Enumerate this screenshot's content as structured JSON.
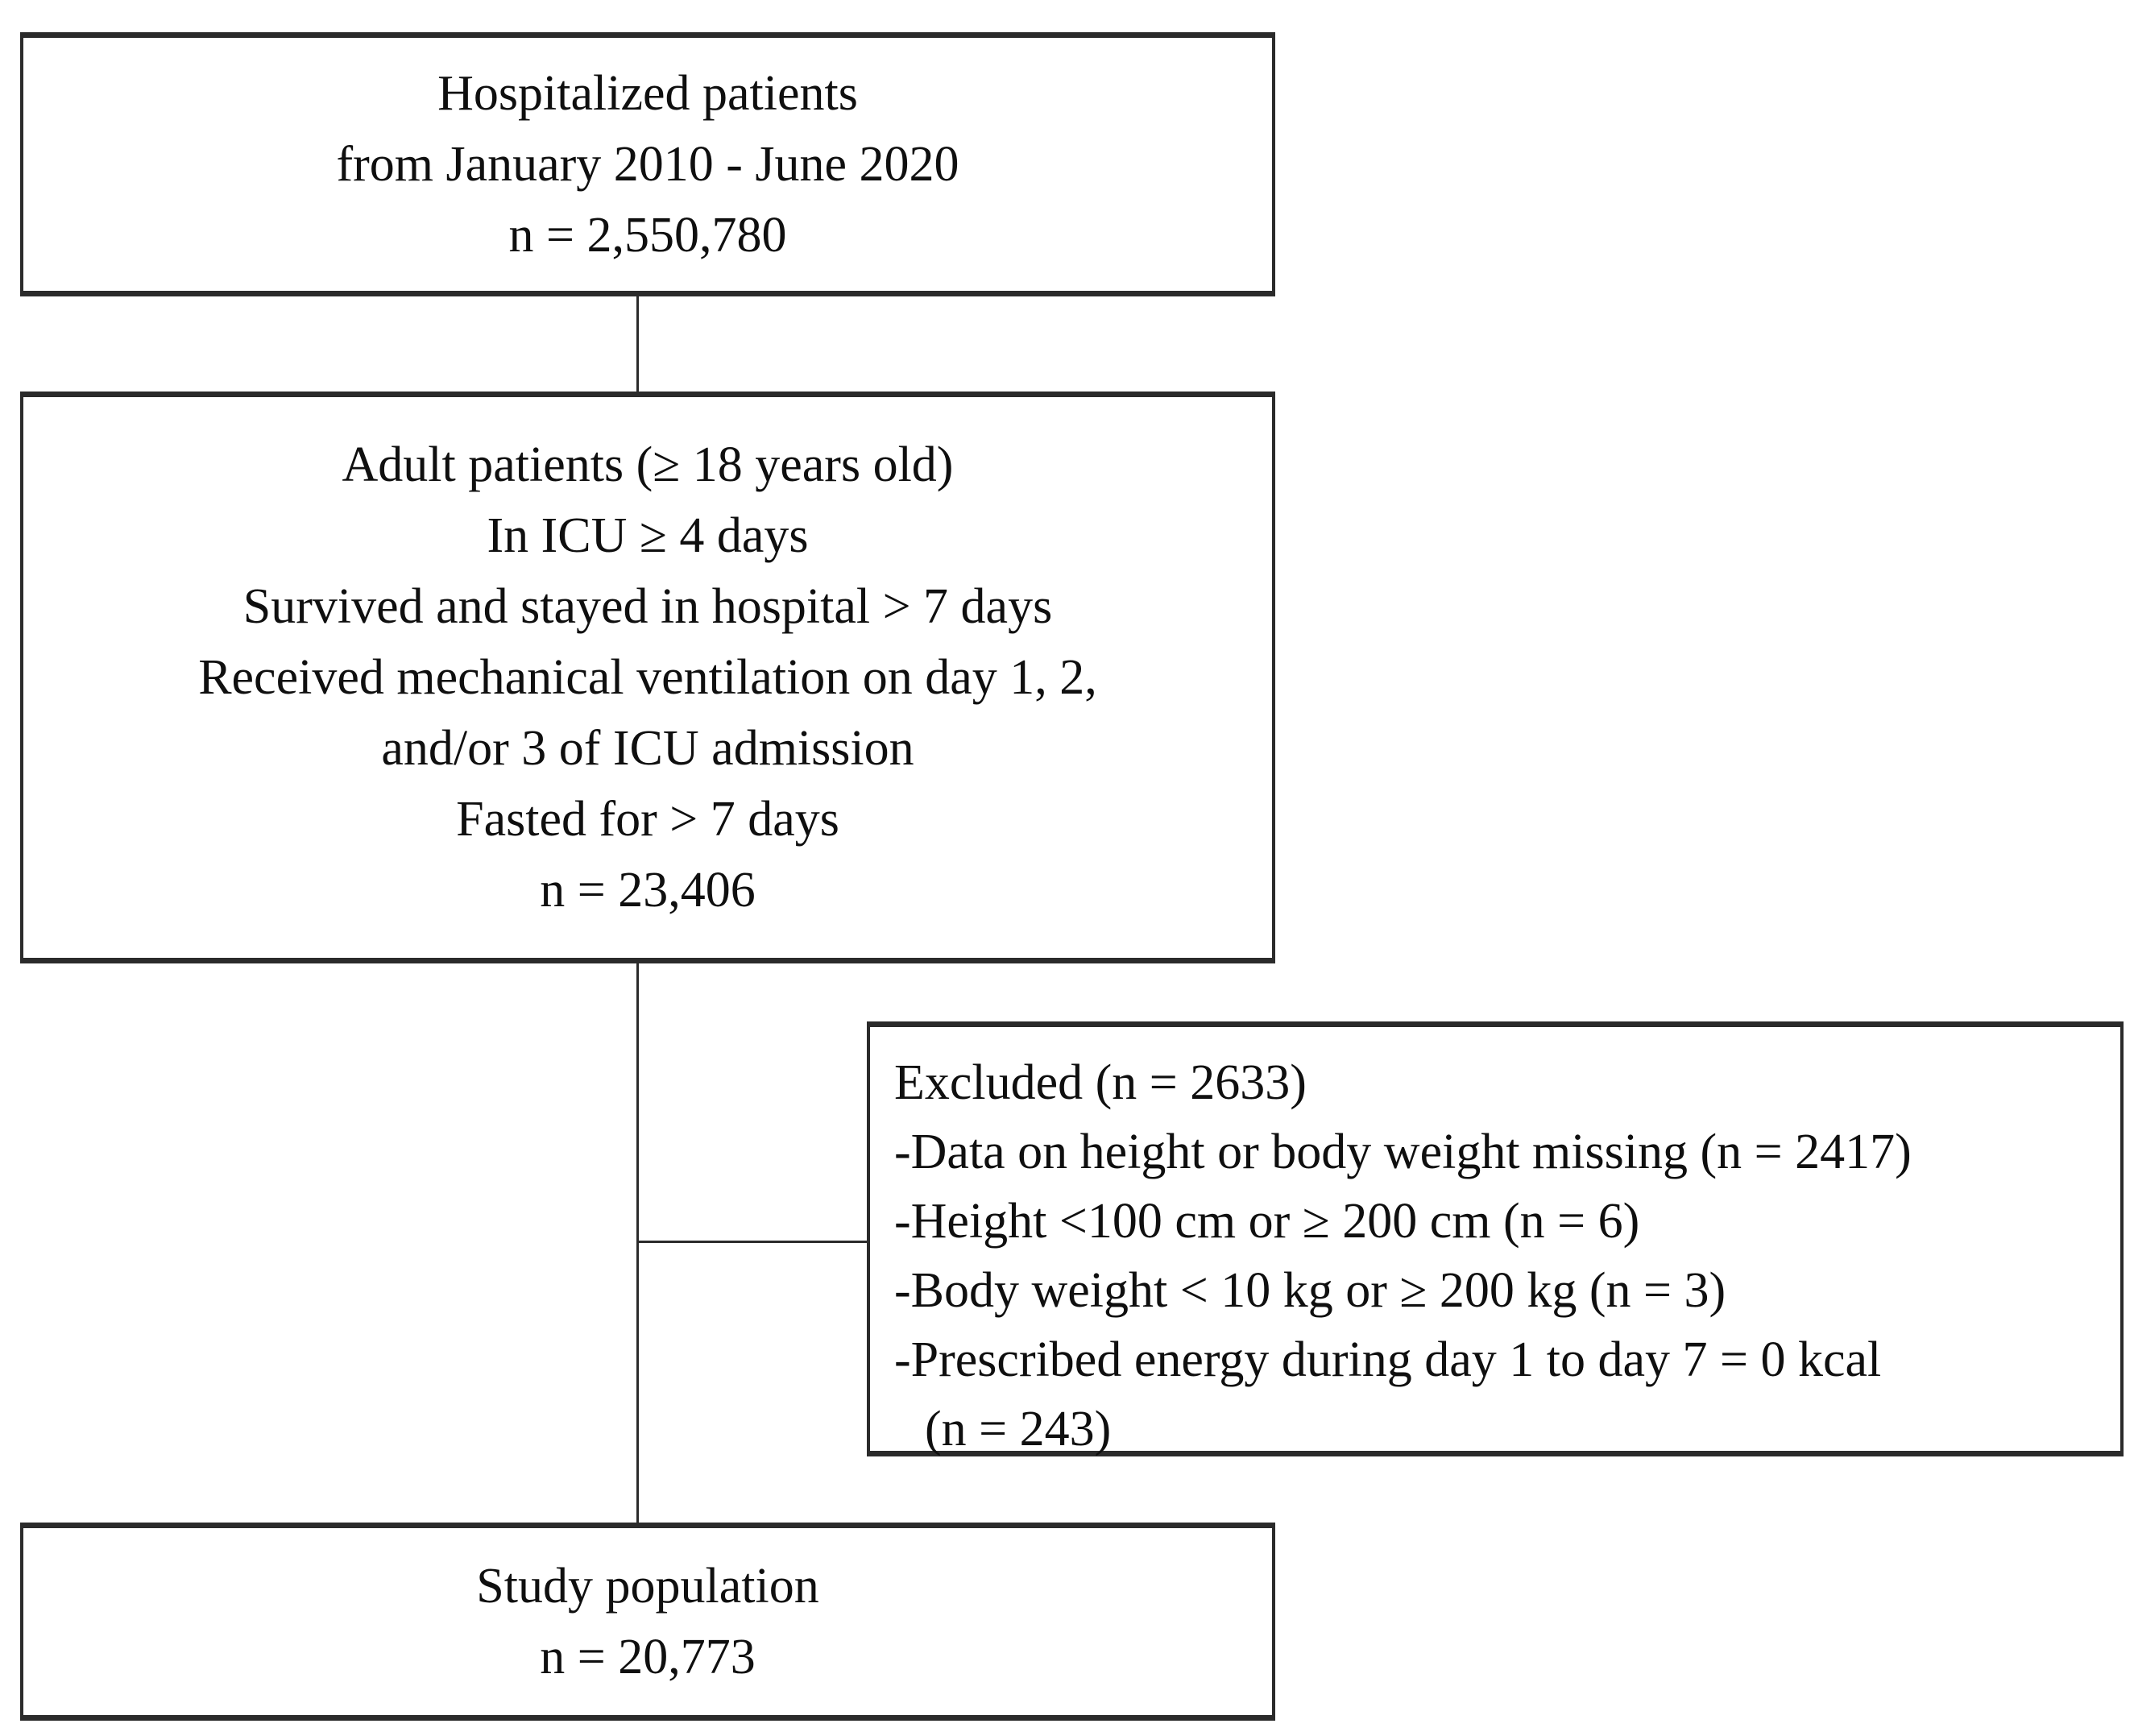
{
  "diagram": {
    "type": "flowchart",
    "colors": {
      "border": "#2b2b2b",
      "text": "#0f0f0f",
      "background": "#ffffff"
    },
    "boxes": {
      "hospitalized": {
        "lines": [
          "Hospitalized patients",
          "from January 2010 - June 2020",
          "n = 2,550,780"
        ]
      },
      "adult": {
        "lines": [
          "Adult patients (≥ 18 years old)",
          "In ICU ≥ 4 days",
          "Survived and stayed in hospital > 7 days",
          "Received mechanical ventilation on day 1, 2,",
          "and/or 3 of ICU admission",
          "Fasted for > 7 days",
          "n = 23,406"
        ]
      },
      "excluded": {
        "lines": [
          "Excluded (n = 2633)",
          "-Data on height or body weight missing (n = 2417)",
          "-Height <100 cm or ≥ 200 cm (n = 6)",
          "-Body weight < 10 kg or ≥ 200 kg (n = 3)",
          "-Prescribed energy during day 1 to day 7 = 0 kcal",
          "(n = 243)"
        ]
      },
      "study": {
        "lines": [
          "Study population",
          "n = 20,773"
        ]
      }
    }
  }
}
